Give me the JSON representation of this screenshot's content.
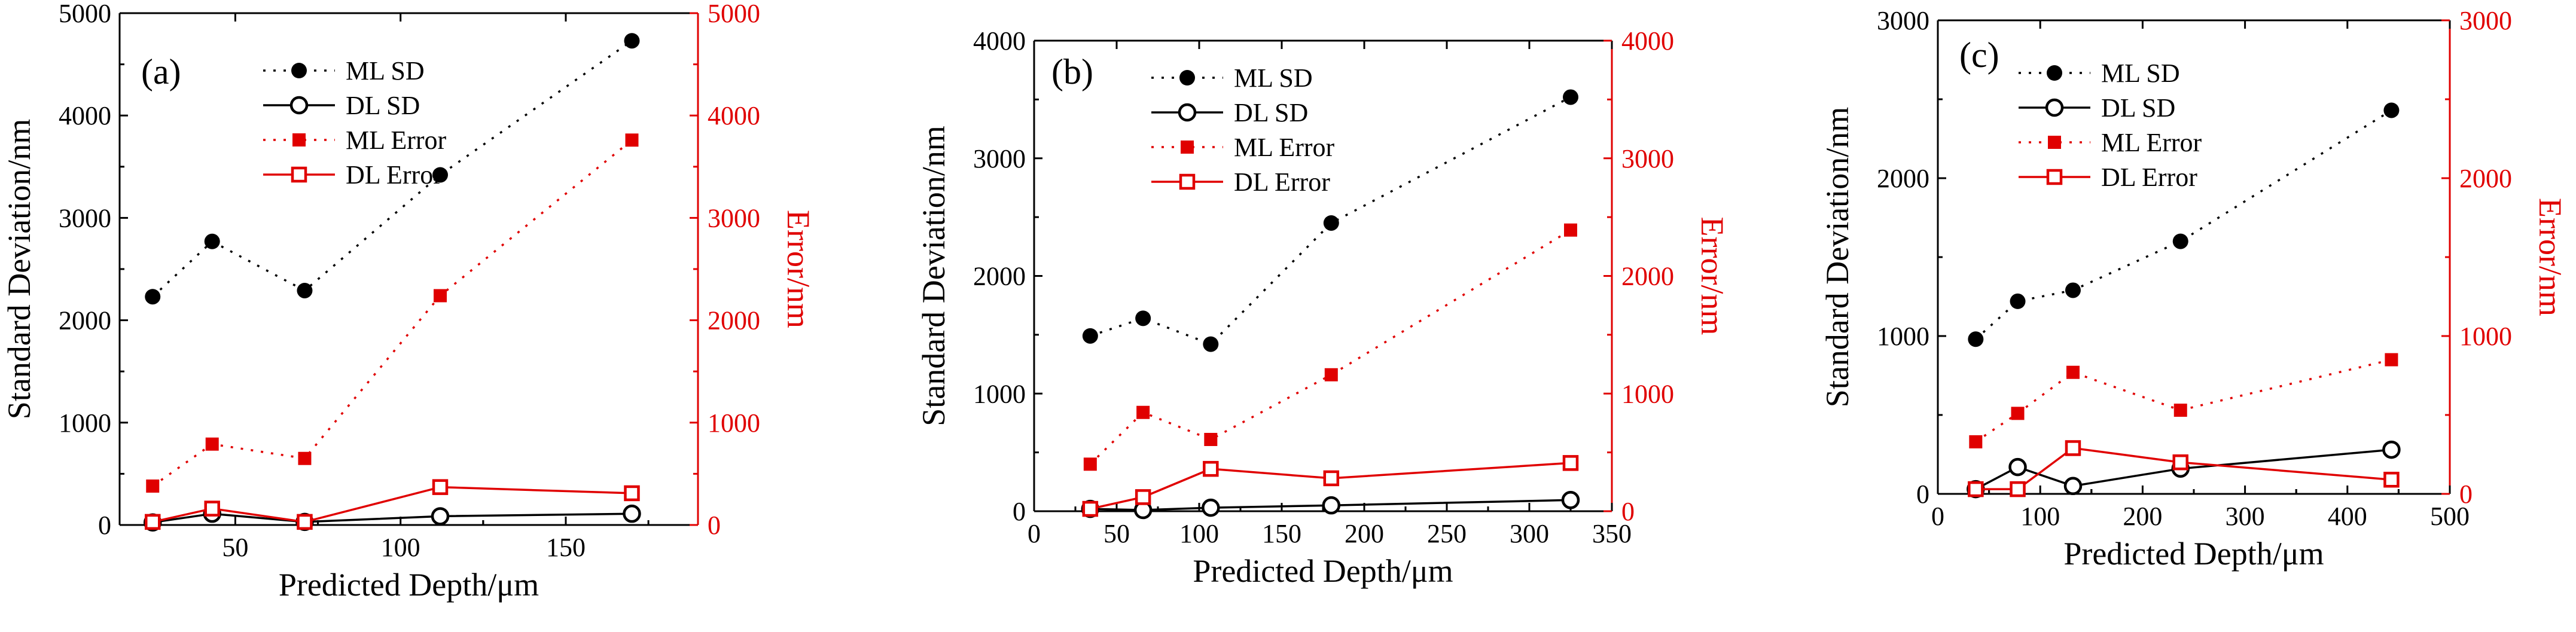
{
  "colors": {
    "black": "#000000",
    "red": "#e00000"
  },
  "chart_data": [
    {
      "type": "line",
      "panel_label": "(a)",
      "xlabel": "Predicted Depth/μm",
      "ylabel_left": "Standard Deviation/nm",
      "ylabel_right": "Error/nm",
      "xlim": [
        15,
        190
      ],
      "xticks": [
        50,
        100,
        150
      ],
      "ylim": [
        0,
        5000
      ],
      "yticks": [
        0,
        1000,
        2000,
        3000,
        4000,
        5000
      ],
      "yticks_right": [
        0,
        1000,
        2000,
        3000,
        4000,
        5000
      ],
      "legend": [
        "ML SD",
        "DL SD",
        "ML Error",
        "DL Error"
      ],
      "x": [
        25,
        43,
        71,
        112,
        170
      ],
      "series": [
        {
          "name": "ML SD",
          "axis": "left",
          "values": [
            2230,
            2770,
            2290,
            3420,
            4730
          ]
        },
        {
          "name": "DL SD",
          "axis": "left",
          "values": [
            25,
            110,
            30,
            85,
            110
          ]
        },
        {
          "name": "ML Error",
          "axis": "right",
          "values": [
            380,
            790,
            650,
            2240,
            3760
          ]
        },
        {
          "name": "DL Error",
          "axis": "right",
          "values": [
            30,
            160,
            30,
            370,
            310
          ]
        }
      ]
    },
    {
      "type": "line",
      "panel_label": "(b)",
      "xlabel": "Predicted Depth/μm",
      "ylabel_left": "Standard Deviation/nm",
      "ylabel_right": "Error/nm",
      "xlim": [
        0,
        350
      ],
      "xticks": [
        0,
        50,
        100,
        150,
        200,
        250,
        300,
        350
      ],
      "ylim": [
        0,
        4000
      ],
      "yticks": [
        0,
        1000,
        2000,
        3000,
        4000
      ],
      "yticks_right": [
        0,
        1000,
        2000,
        3000,
        4000
      ],
      "legend": [
        "ML SD",
        "DL SD",
        "ML Error",
        "DL Error"
      ],
      "x": [
        34,
        66,
        107,
        180,
        325
      ],
      "series": [
        {
          "name": "ML SD",
          "axis": "left",
          "values": [
            1490,
            1640,
            1420,
            2450,
            3520
          ]
        },
        {
          "name": "DL SD",
          "axis": "left",
          "values": [
            20,
            10,
            30,
            50,
            95
          ]
        },
        {
          "name": "ML Error",
          "axis": "right",
          "values": [
            400,
            840,
            610,
            1160,
            2390
          ]
        },
        {
          "name": "DL Error",
          "axis": "right",
          "values": [
            20,
            120,
            360,
            280,
            410
          ]
        }
      ]
    },
    {
      "type": "line",
      "panel_label": "(c)",
      "xlabel": "Predicted Depth/μm",
      "ylabel_left": "Standard Deviation/nm",
      "ylabel_right": "Error/nm",
      "xlim": [
        0,
        500
      ],
      "xticks": [
        0,
        100,
        200,
        300,
        400,
        500
      ],
      "ylim": [
        0,
        3000
      ],
      "yticks": [
        0,
        1000,
        2000,
        3000
      ],
      "yticks_right": [
        0,
        1000,
        2000,
        3000
      ],
      "legend": [
        "ML SD",
        "DL SD",
        "ML Error",
        "DL Error"
      ],
      "x": [
        37,
        78,
        132,
        237,
        443
      ],
      "series": [
        {
          "name": "ML SD",
          "axis": "left",
          "values": [
            980,
            1220,
            1290,
            1600,
            2430
          ]
        },
        {
          "name": "DL SD",
          "axis": "left",
          "values": [
            30,
            170,
            50,
            160,
            280
          ]
        },
        {
          "name": "ML Error",
          "axis": "right",
          "values": [
            330,
            510,
            770,
            530,
            850
          ]
        },
        {
          "name": "DL Error",
          "axis": "right",
          "values": [
            30,
            30,
            290,
            200,
            90
          ]
        }
      ]
    }
  ]
}
